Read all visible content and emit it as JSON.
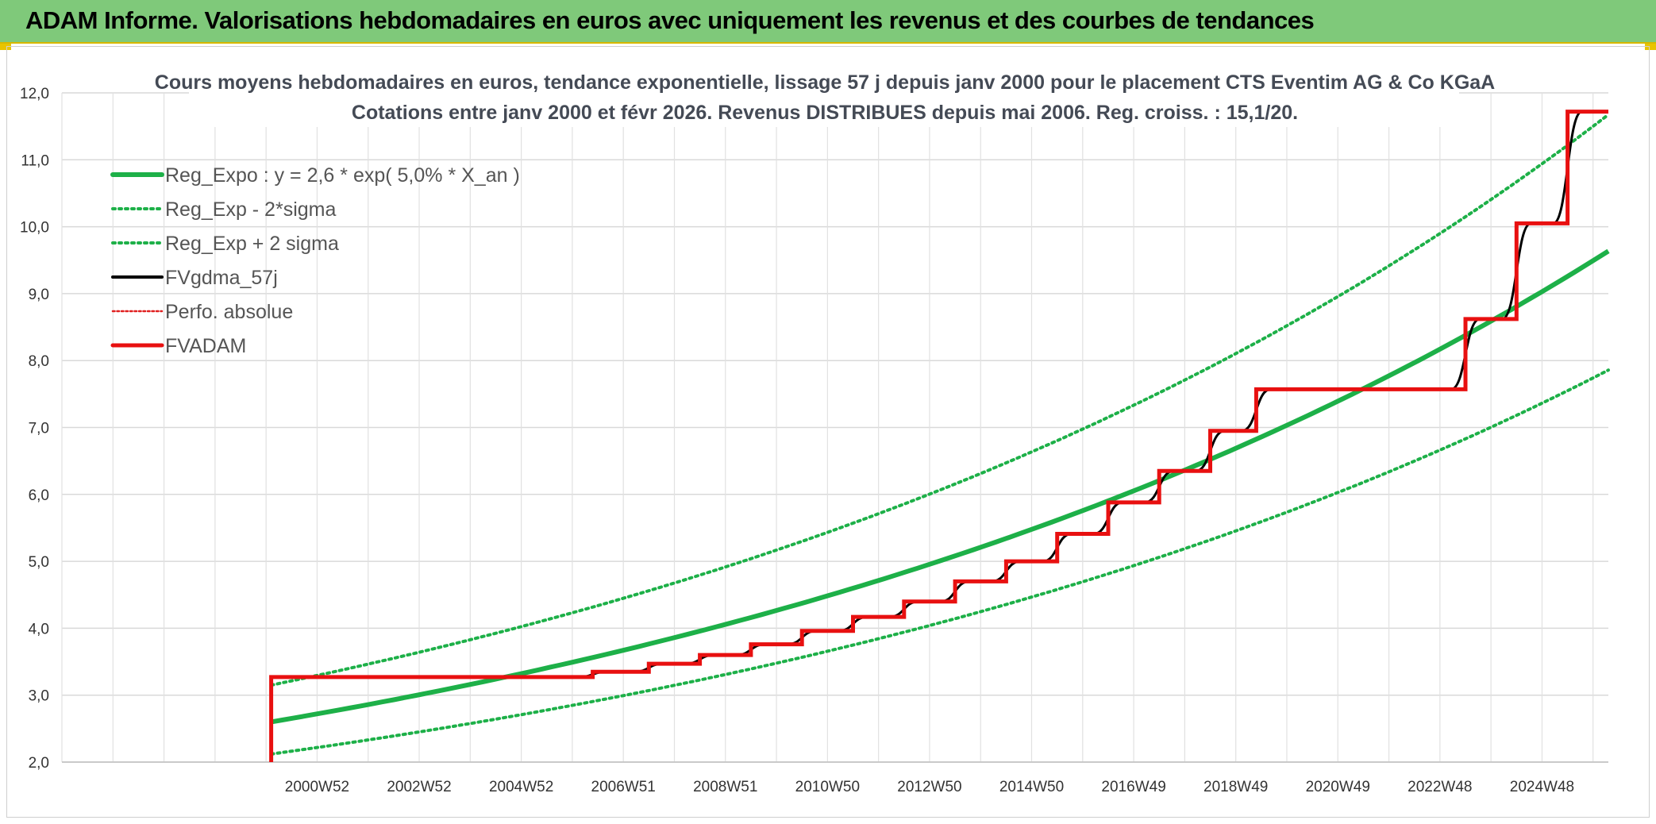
{
  "header": {
    "title": "ADAM Informe. Valorisations hebdomadaires en euros avec uniquement les revenus et des courbes de tendances"
  },
  "chart_data": {
    "type": "line",
    "title": [
      "Cours moyens hebdomadaires en euros, tendance exponentielle, lissage 57 j depuis janv 2000 pour le placement CTS Eventim AG & Co KGaA",
      "Cotations entre janv 2000 et févr 2026. Revenus DISTRIBUES depuis mai 2006. Reg. croiss. : 15,1/20."
    ],
    "xlabel": "",
    "ylabel": "",
    "ylim": [
      2.0,
      12.0
    ],
    "xlim": [
      1996,
      2026.3
    ],
    "y_ticks": [
      "2,0",
      "3,0",
      "4,0",
      "5,0",
      "6,0",
      "7,0",
      "8,0",
      "9,0",
      "10,0",
      "11,0",
      "12,0"
    ],
    "x_ticks": [
      {
        "label": "2000W52",
        "x": 2001.0
      },
      {
        "label": "2002W52",
        "x": 2003.0
      },
      {
        "label": "2004W52",
        "x": 2005.0
      },
      {
        "label": "2006W51",
        "x": 2007.0
      },
      {
        "label": "2008W51",
        "x": 2009.0
      },
      {
        "label": "2010W50",
        "x": 2011.0
      },
      {
        "label": "2012W50",
        "x": 2013.0
      },
      {
        "label": "2014W50",
        "x": 2015.0
      },
      {
        "label": "2016W49",
        "x": 2017.0
      },
      {
        "label": "2018W49",
        "x": 2019.0
      },
      {
        "label": "2020W49",
        "x": 2021.0
      },
      {
        "label": "2022W48",
        "x": 2023.0
      },
      {
        "label": "2024W48",
        "x": 2025.0
      }
    ],
    "grid": true,
    "legend": "top-left",
    "series": [
      {
        "name": "Reg_Expo : y = 2,6 * exp( 5,0% *  X_an )",
        "style": "solid",
        "color": "#1db048",
        "x": [
          2000.1,
          2026.3
        ],
        "a": 2.6,
        "rate": 0.05
      },
      {
        "name": "Reg_Exp - 2*sigma",
        "style": "dotted",
        "color": "#1db048",
        "x": [
          2000.1,
          2026.3
        ],
        "a": 2.12,
        "rate": 0.05
      },
      {
        "name": "Reg_Exp + 2 sigma",
        "style": "dotted",
        "color": "#1db048",
        "x": [
          2000.1,
          2026.3
        ],
        "a": 3.15,
        "rate": 0.05
      },
      {
        "name": "FVgdma_57j",
        "style": "smooth",
        "color": "#000000"
      },
      {
        "name": "Perfo. absolue",
        "style": "dotted",
        "color": "#e02020"
      },
      {
        "name": "FVADAM",
        "style": "step",
        "color": "#e81010",
        "x": [
          2000.1,
          2000.1,
          2006.4,
          2007.5,
          2008.5,
          2009.5,
          2010.5,
          2011.5,
          2012.5,
          2013.5,
          2014.5,
          2015.5,
          2016.5,
          2017.5,
          2018.5,
          2019.4,
          2023.5,
          2024.5,
          2025.5,
          2026.3
        ],
        "values": [
          2.0,
          3.27,
          3.35,
          3.47,
          3.6,
          3.76,
          3.96,
          4.17,
          4.4,
          4.7,
          5.0,
          5.41,
          5.88,
          6.35,
          6.95,
          7.57,
          8.62,
          10.05,
          11.72,
          11.72
        ]
      }
    ]
  }
}
